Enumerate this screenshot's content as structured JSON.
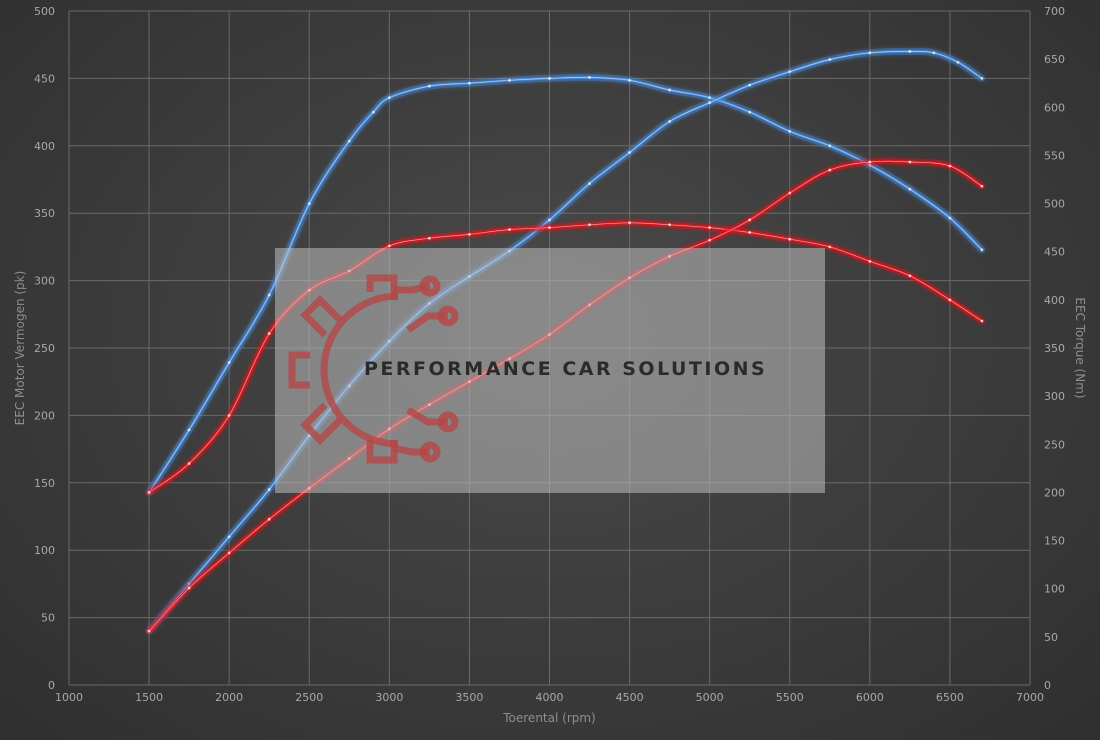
{
  "chart_data": {
    "type": "line",
    "xlabel": "Toerental (rpm)",
    "ylabel_left": "EEC Motor Vermogen (pk)",
    "ylabel_right": "EEC Torque (Nm)",
    "xlim": [
      1000,
      7000
    ],
    "ylim_left": [
      0,
      500
    ],
    "ylim_right": [
      0,
      700
    ],
    "x_ticks": [
      1000,
      1500,
      2000,
      2500,
      3000,
      3500,
      4000,
      4500,
      5000,
      5500,
      6000,
      6500,
      7000
    ],
    "y_left_ticks": [
      0,
      50,
      100,
      150,
      200,
      250,
      300,
      350,
      400,
      450,
      500
    ],
    "y_right_ticks": [
      0,
      50,
      100,
      150,
      200,
      250,
      300,
      350,
      400,
      450,
      500,
      550,
      600,
      650,
      700
    ],
    "grid": true,
    "series": [
      {
        "axis": "right",
        "color": "#4a90e2",
        "x": [
          1500,
          1750,
          2000,
          2250,
          2500,
          2750,
          2900,
          3000,
          3250,
          3500,
          3750,
          4000,
          4250,
          4500,
          4750,
          5000,
          5250,
          5500,
          5750,
          6000,
          6250,
          6500,
          6700
        ],
        "y": [
          200,
          265,
          335,
          405,
          500,
          565,
          595,
          610,
          622,
          625,
          628,
          630,
          631,
          628,
          618,
          610,
          595,
          575,
          560,
          540,
          515,
          485,
          452
        ]
      },
      {
        "axis": "left",
        "color": "#4a90e2",
        "x": [
          1500,
          1750,
          2000,
          2250,
          2500,
          2750,
          3000,
          3250,
          3500,
          3750,
          4000,
          4250,
          4500,
          4750,
          5000,
          5250,
          5500,
          5750,
          6000,
          6250,
          6400,
          6550,
          6700
        ],
        "y": [
          40,
          75,
          110,
          145,
          185,
          222,
          255,
          283,
          303,
          322,
          345,
          372,
          395,
          418,
          432,
          445,
          455,
          464,
          469,
          470,
          469,
          462,
          450
        ]
      },
      {
        "axis": "right",
        "color": "#e8161b",
        "x": [
          1500,
          1750,
          2000,
          2250,
          2500,
          2750,
          3000,
          3250,
          3500,
          3750,
          4000,
          4250,
          4500,
          4750,
          5000,
          5250,
          5500,
          5750,
          6000,
          6250,
          6500,
          6700
        ],
        "y": [
          200,
          230,
          280,
          365,
          410,
          430,
          456,
          464,
          468,
          473,
          475,
          478,
          480,
          478,
          475,
          470,
          463,
          455,
          440,
          425,
          400,
          378
        ]
      },
      {
        "axis": "left",
        "color": "#e8161b",
        "x": [
          1500,
          1750,
          2000,
          2250,
          2500,
          2750,
          3000,
          3250,
          3500,
          3750,
          4000,
          4250,
          4500,
          4750,
          5000,
          5250,
          5500,
          5750,
          6000,
          6250,
          6500,
          6700
        ],
        "y": [
          40,
          72,
          98,
          123,
          146,
          168,
          190,
          208,
          225,
          242,
          260,
          282,
          302,
          318,
          330,
          345,
          365,
          382,
          388,
          388,
          385,
          370
        ]
      }
    ]
  },
  "watermark": {
    "text": "PERFORMANCE CAR SOLUTIONS",
    "gear_color": "#b54646"
  }
}
